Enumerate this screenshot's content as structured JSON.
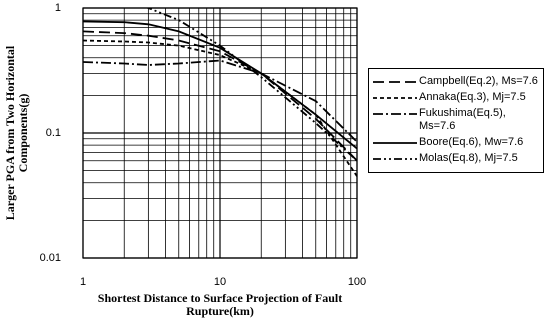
{
  "chart_data": {
    "type": "line",
    "xlabel": "Shortest Distance to Surface Projection of Fault Rupture(km)",
    "ylabel": "Larger PGA from Two Horizontal Components(g)",
    "x": [
      1,
      2,
      3,
      5,
      10,
      20,
      50,
      100
    ],
    "series": [
      {
        "name": "Campbell(Eq.2), Ms=7.6",
        "color": "#000000",
        "dash": "11,5",
        "values": [
          0.65,
          0.63,
          0.6,
          0.55,
          0.45,
          0.3,
          0.13,
          0.06
        ]
      },
      {
        "name": "Annaka(Eq.3), Mj=7.5",
        "color": "#000000",
        "dash": "4,3",
        "values": [
          0.55,
          0.54,
          0.53,
          0.5,
          0.42,
          0.3,
          0.14,
          0.045
        ]
      },
      {
        "name": "Fukushima(Eq.5), Ms=7.6",
        "color": "#000000",
        "dash": "10,3,2,3",
        "values": [
          0.37,
          0.36,
          0.35,
          0.36,
          0.38,
          0.3,
          0.18,
          0.085
        ]
      },
      {
        "name": "Boore(Eq.6), Mw=7.6",
        "color": "#000000",
        "dash": "none",
        "values": [
          0.78,
          0.77,
          0.74,
          0.65,
          0.48,
          0.3,
          0.14,
          0.075
        ]
      },
      {
        "name": "Molas(Eq.8), Mj=7.5",
        "color": "#000000",
        "dash": "8,3,2,3,2,3",
        "values": [
          null,
          1.15,
          1.0,
          0.8,
          0.5,
          0.28,
          0.12,
          0.06
        ]
      }
    ],
    "xlim": [
      1,
      100
    ],
    "ylim": [
      0.01,
      1
    ],
    "xticks": [
      1,
      10,
      100
    ],
    "yticks": [
      0.01,
      0.1,
      1
    ],
    "xminorticks": [
      2,
      3,
      4,
      5,
      6,
      7,
      8,
      9,
      20,
      30,
      40,
      50,
      60,
      70,
      80,
      90
    ],
    "yminorticks": [
      0.02,
      0.03,
      0.04,
      0.05,
      0.06,
      0.07,
      0.08,
      0.09,
      0.2,
      0.3,
      0.4,
      0.5,
      0.6,
      0.7,
      0.8,
      0.9
    ],
    "log_x": true,
    "log_y": true,
    "grid": true,
    "legend": "right"
  }
}
